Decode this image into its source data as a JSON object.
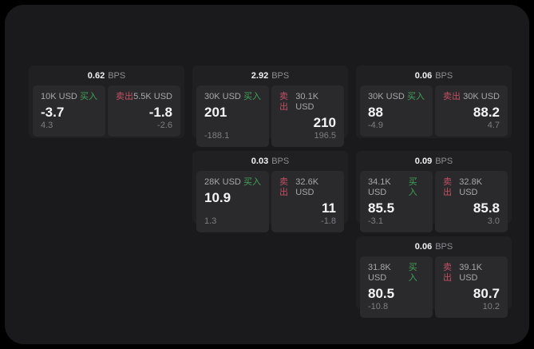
{
  "labels": {
    "bps_unit": "BPS",
    "buy": "买入",
    "sell": "卖出"
  },
  "colors": {
    "background": "#000000",
    "surface": "#1a1a1c",
    "card": "#202023",
    "panel": "#2a2a2d",
    "buy_green": "#41a158",
    "sell_red": "#c25065"
  },
  "cards": [
    {
      "bps": "0.62",
      "buy": {
        "amount": "10K USD",
        "value": "-3.7",
        "sub": "4.3"
      },
      "sell": {
        "amount": "5.5K USD",
        "value": "-1.8",
        "sub": "-2.6"
      }
    },
    {
      "bps": "2.92",
      "buy": {
        "amount": "30K USD",
        "value": "201",
        "sub": "-188.1"
      },
      "sell": {
        "amount": "30.1K USD",
        "value": "210",
        "sub": "196.5"
      }
    },
    {
      "bps": "0.06",
      "buy": {
        "amount": "30K USD",
        "value": "88",
        "sub": "-4.9"
      },
      "sell": {
        "amount": "30K USD",
        "value": "88.2",
        "sub": "4.7"
      }
    },
    {
      "bps": "0.03",
      "buy": {
        "amount": "28K USD",
        "value": "10.9",
        "sub": "1.3"
      },
      "sell": {
        "amount": "32.6K USD",
        "value": "11",
        "sub": "-1.8"
      }
    },
    {
      "bps": "0.09",
      "buy": {
        "amount": "34.1K USD",
        "value": "85.5",
        "sub": "-3.1"
      },
      "sell": {
        "amount": "32.8K USD",
        "value": "85.8",
        "sub": "3.0"
      }
    },
    {
      "bps": "0.06",
      "buy": {
        "amount": "31.8K USD",
        "value": "80.5",
        "sub": "-10.8"
      },
      "sell": {
        "amount": "39.1K USD",
        "value": "80.7",
        "sub": "10.2"
      }
    }
  ]
}
